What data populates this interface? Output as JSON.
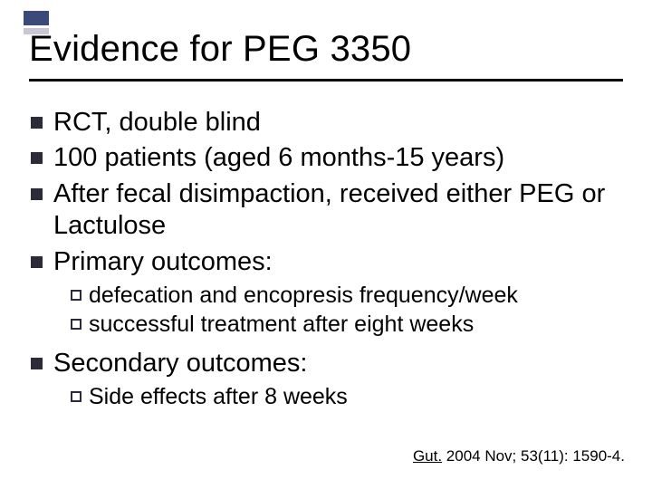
{
  "colors": {
    "accent_dark": "#3a4b7a",
    "accent_light": "#c8c8d4",
    "text": "#000000",
    "bullet": "#2b2b3a",
    "background": "#ffffff",
    "rule": "#000000"
  },
  "typography": {
    "title_fontsize": 40,
    "l1_fontsize": 29,
    "l2_fontsize": 25,
    "citation_fontsize": 17,
    "font_family": "Arial"
  },
  "title": "Evidence for PEG 3350",
  "bullets_l1_a": [
    "RCT, double blind",
    "100 patients (aged 6 months-15 years)",
    "After fecal disimpaction, received either PEG or Lactulose",
    "Primary outcomes:"
  ],
  "sub_primary": [
    "defecation and encopresis frequency/week",
    "successful treatment after eight weeks"
  ],
  "bullets_l1_b": [
    "Secondary outcomes:"
  ],
  "sub_secondary": [
    "Side effects after 8 weeks"
  ],
  "citation": {
    "journal": "Gut.",
    "rest": " 2004 Nov; 53(11): 1590-4."
  }
}
